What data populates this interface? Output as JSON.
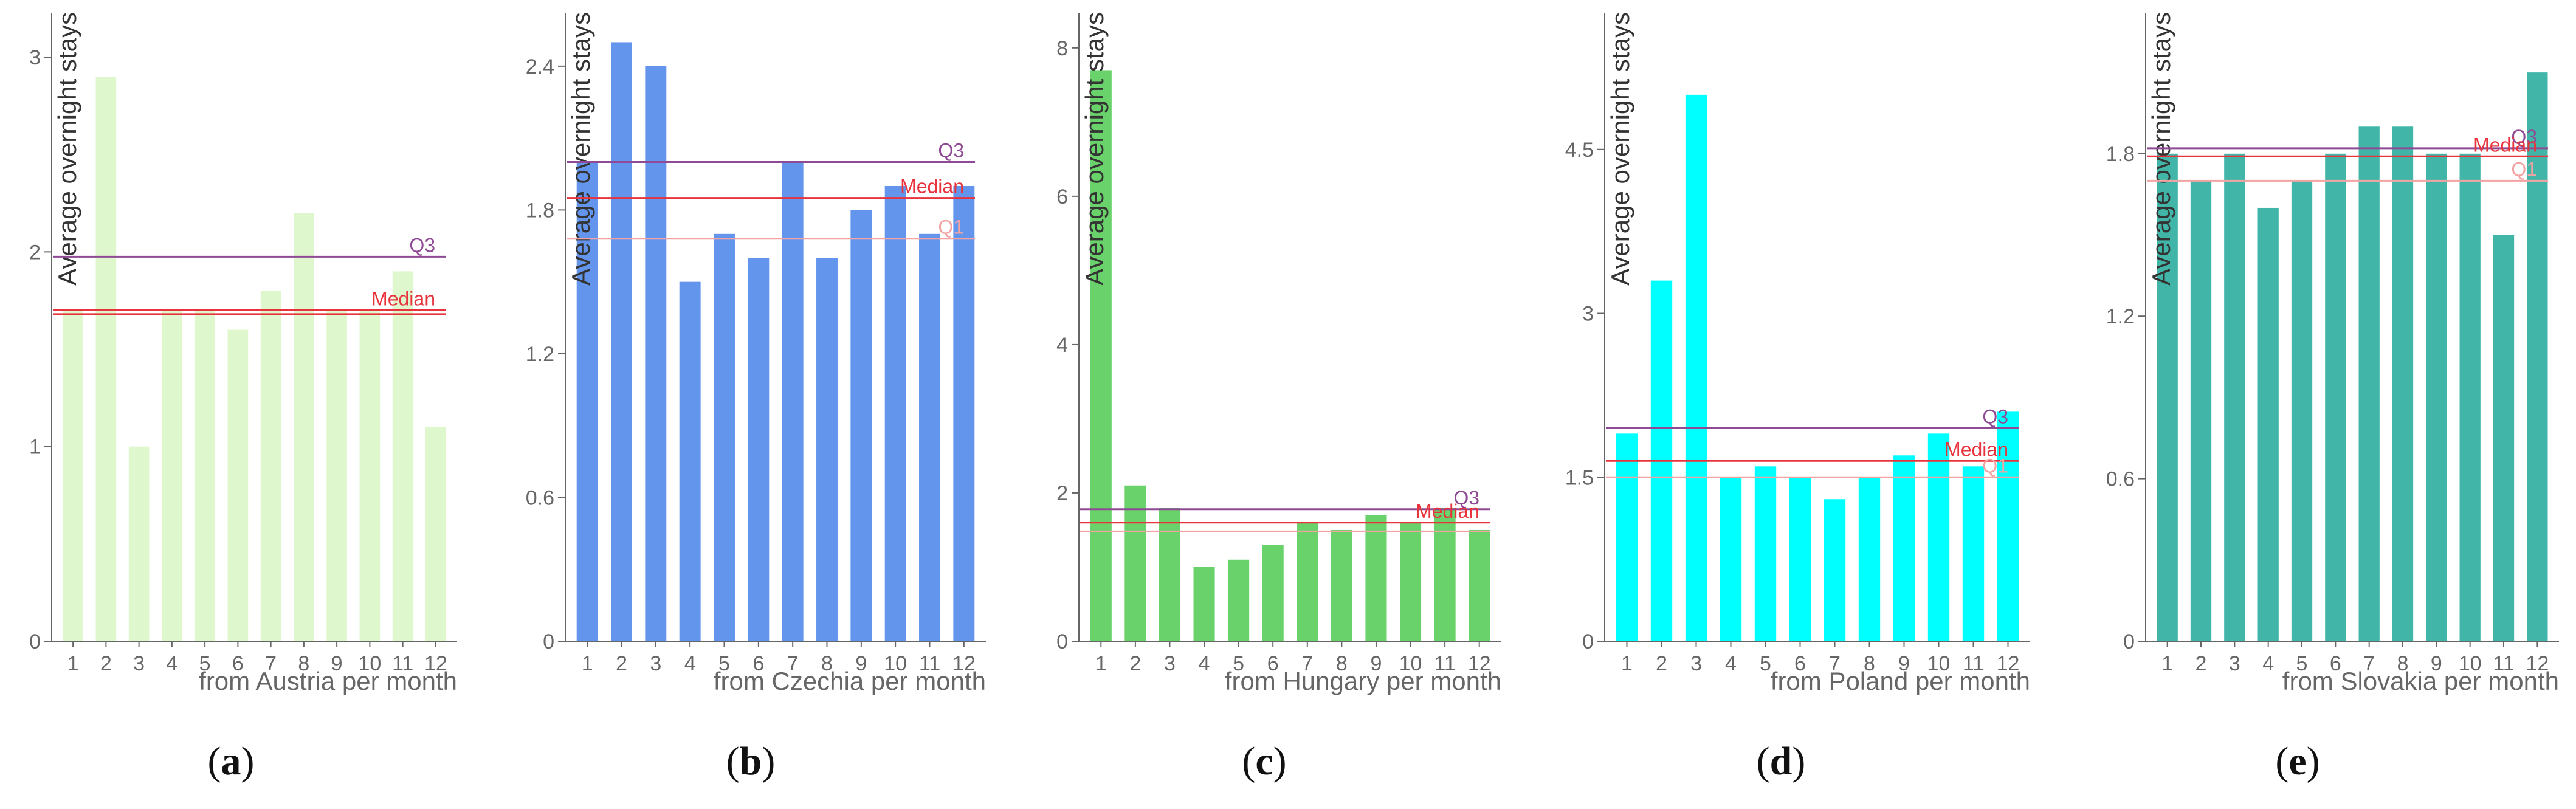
{
  "figure": {
    "panel_labels": [
      "a",
      "b",
      "c",
      "d",
      "e"
    ]
  },
  "chart_data": [
    {
      "type": "bar",
      "panel": "a",
      "xlabel": "from Austria per month",
      "ylabel": "Average overnight stays",
      "categories": [
        "1",
        "2",
        "3",
        "4",
        "5",
        "6",
        "7",
        "8",
        "9",
        "10",
        "11",
        "12"
      ],
      "values": [
        1.7,
        2.9,
        1.0,
        1.7,
        1.7,
        1.6,
        1.8,
        2.2,
        1.7,
        1.7,
        1.9,
        1.1
      ],
      "ylim": [
        0,
        3.2
      ],
      "yticks": [
        0,
        1,
        2,
        3
      ],
      "color": "#dff7cc",
      "reference_lines": [
        {
          "label": "Q3",
          "value": 1.975,
          "color": "#8e4a94"
        },
        {
          "label": "Median",
          "value": 1.7,
          "color": "#e8323c"
        },
        {
          "label": "",
          "value": 1.68,
          "color": "#e8323c"
        }
      ]
    },
    {
      "type": "bar",
      "panel": "b",
      "xlabel": "from Czechia per month",
      "ylabel": "Average overnight stays",
      "categories": [
        "1",
        "2",
        "3",
        "4",
        "5",
        "6",
        "7",
        "8",
        "9",
        "10",
        "11",
        "12"
      ],
      "values": [
        2.0,
        2.5,
        2.4,
        1.5,
        1.7,
        1.6,
        2.0,
        1.6,
        1.8,
        1.9,
        1.7,
        1.9
      ],
      "ylim": [
        0,
        2.6
      ],
      "yticks": [
        0,
        0.6,
        1.2,
        1.8,
        2.4
      ],
      "color": "#6495ed",
      "reference_lines": [
        {
          "label": "Q3",
          "value": 2.0,
          "color": "#8e4a94"
        },
        {
          "label": "Median",
          "value": 1.85,
          "color": "#e8323c"
        },
        {
          "label": "Q1",
          "value": 1.68,
          "color": "#f4a3a3"
        }
      ]
    },
    {
      "type": "bar",
      "panel": "c",
      "xlabel": "from Hungary per month",
      "ylabel": "Average overnight stays",
      "categories": [
        "1",
        "2",
        "3",
        "4",
        "5",
        "6",
        "7",
        "8",
        "9",
        "10",
        "11",
        "12"
      ],
      "values": [
        7.7,
        2.1,
        1.8,
        1.0,
        1.1,
        1.3,
        1.6,
        1.5,
        1.7,
        1.6,
        1.8,
        1.5
      ],
      "ylim": [
        0,
        8.4
      ],
      "yticks": [
        0,
        2,
        4,
        6,
        8
      ],
      "color": "#6ad26a",
      "reference_lines": [
        {
          "label": "Q3",
          "value": 1.78,
          "color": "#8e4a94"
        },
        {
          "label": "Median",
          "value": 1.6,
          "color": "#e8323c"
        },
        {
          "label": "",
          "value": 1.48,
          "color": "#f4a3a3"
        }
      ]
    },
    {
      "type": "bar",
      "panel": "d",
      "xlabel": "from Poland per month",
      "ylabel": "Average overnight stays",
      "categories": [
        "1",
        "2",
        "3",
        "4",
        "5",
        "6",
        "7",
        "8",
        "9",
        "10",
        "11",
        "12"
      ],
      "values": [
        1.9,
        3.3,
        5.0,
        1.5,
        1.6,
        1.5,
        1.3,
        1.5,
        1.7,
        1.9,
        1.6,
        2.1
      ],
      "ylim": [
        0,
        5.7
      ],
      "yticks": [
        0,
        1.5,
        3,
        4.5
      ],
      "ytick_labels": [
        "0",
        "1.5",
        "3",
        "4.5"
      ],
      "color": "#00ffff",
      "reference_lines": [
        {
          "label": "Q3",
          "value": 1.95,
          "color": "#8e4a94"
        },
        {
          "label": "Median",
          "value": 1.65,
          "color": "#e8323c"
        },
        {
          "label": "Q1",
          "value": 1.5,
          "color": "#f4a3a3"
        }
      ]
    },
    {
      "type": "bar",
      "panel": "e",
      "xlabel": "from Slovakia per month",
      "ylabel": "Average overnight stays",
      "categories": [
        "1",
        "2",
        "3",
        "4",
        "5",
        "6",
        "7",
        "8",
        "9",
        "10",
        "11",
        "12"
      ],
      "values": [
        1.8,
        1.7,
        1.8,
        1.6,
        1.7,
        1.8,
        1.9,
        1.9,
        1.8,
        1.8,
        1.5,
        2.1
      ],
      "ylim": [
        0,
        2.3
      ],
      "yticks": [
        0,
        0.6,
        1.2,
        1.8
      ],
      "color": "#41b6a8",
      "reference_lines": [
        {
          "label": "Q3",
          "value": 1.82,
          "color": "#8e4a94"
        },
        {
          "label": "Median",
          "value": 1.79,
          "color": "#e8323c"
        },
        {
          "label": "Q1",
          "value": 1.7,
          "color": "#f4a3a3"
        }
      ]
    }
  ]
}
